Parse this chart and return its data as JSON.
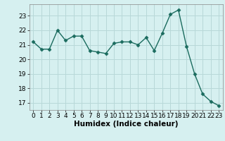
{
  "x": [
    0,
    1,
    2,
    3,
    4,
    5,
    6,
    7,
    8,
    9,
    10,
    11,
    12,
    13,
    14,
    15,
    16,
    17,
    18,
    19,
    20,
    21,
    22,
    23
  ],
  "y": [
    21.2,
    20.7,
    20.7,
    22.0,
    21.3,
    21.6,
    21.6,
    20.6,
    20.5,
    20.4,
    21.1,
    21.2,
    21.2,
    21.0,
    21.5,
    20.6,
    21.8,
    23.1,
    23.4,
    20.9,
    19.0,
    17.6,
    17.1,
    16.8
  ],
  "line_color": "#1a6b5e",
  "marker": "D",
  "marker_size": 2.5,
  "linewidth": 1.0,
  "bg_color": "#d6f0f0",
  "grid_color": "#b8d8d8",
  "xlabel": "Humidex (Indice chaleur)",
  "xlabel_fontsize": 7.5,
  "tick_fontsize": 6.5,
  "ylim": [
    16.5,
    23.8
  ],
  "yticks": [
    17,
    18,
    19,
    20,
    21,
    22,
    23
  ],
  "xticks": [
    0,
    1,
    2,
    3,
    4,
    5,
    6,
    7,
    8,
    9,
    10,
    11,
    12,
    13,
    14,
    15,
    16,
    17,
    18,
    19,
    20,
    21,
    22,
    23
  ],
  "spine_color": "#888888"
}
